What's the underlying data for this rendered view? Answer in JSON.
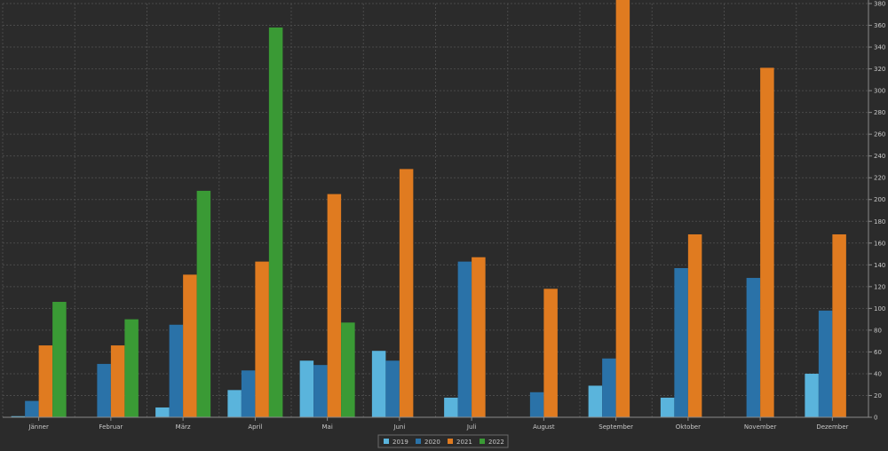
{
  "chart_data": {
    "type": "bar",
    "categories": [
      "Jänner",
      "Februar",
      "März",
      "April",
      "Mai",
      "Juni",
      "Juli",
      "August",
      "September",
      "Oktober",
      "November",
      "Dezember"
    ],
    "series": [
      {
        "name": "2019",
        "color": "#5ab4dc",
        "values": [
          1,
          0,
          9,
          25,
          52,
          61,
          18,
          0,
          29,
          18,
          0,
          40
        ]
      },
      {
        "name": "2020",
        "color": "#2a72a8",
        "values": [
          15,
          49,
          85,
          43,
          48,
          52,
          143,
          23,
          54,
          137,
          128,
          98
        ]
      },
      {
        "name": "2021",
        "color": "#e07b20",
        "values": [
          66,
          66,
          131,
          143,
          205,
          228,
          147,
          118,
          385,
          168,
          321,
          168
        ]
      },
      {
        "name": "2022",
        "color": "#3a9a35",
        "values": [
          106,
          90,
          208,
          358,
          87,
          0,
          0,
          0,
          0,
          0,
          0,
          0
        ]
      }
    ],
    "ylim": [
      0,
      380
    ],
    "yticks": [
      0,
      20,
      40,
      60,
      80,
      100,
      120,
      140,
      160,
      180,
      200,
      220,
      240,
      260,
      280,
      300,
      320,
      340,
      360,
      380
    ],
    "grid": true,
    "legend_position": "bottom-center"
  }
}
